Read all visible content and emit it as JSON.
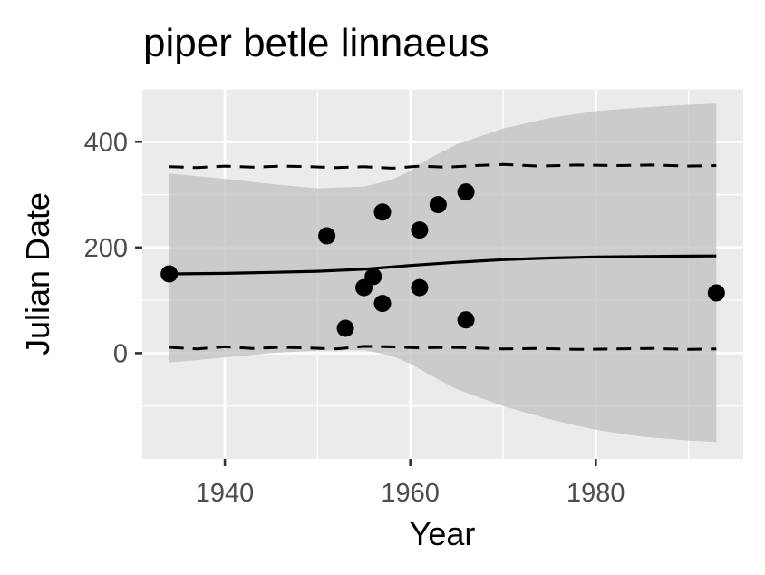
{
  "chart_data": {
    "type": "scatter",
    "title": "piper betle linnaeus",
    "xlabel": "Year",
    "ylabel": "Julian Date",
    "xlim": [
      1931.1,
      1995.9
    ],
    "ylim": [
      -200,
      500
    ],
    "x_ticks": [
      1940,
      1960,
      1980
    ],
    "y_ticks": [
      0,
      200,
      400
    ],
    "x_tick_labels": [
      "1940",
      "1960",
      "1980"
    ],
    "y_tick_labels": [
      "0",
      "200",
      "400"
    ],
    "grid": true,
    "legend": "none",
    "colors": {
      "panel": "#ebebeb",
      "grid": "#ffffff",
      "band": "#bebebe",
      "points": "#000000",
      "lines": "#000000",
      "tick_text": "#4d4d4d"
    },
    "points": [
      {
        "x": 1934,
        "y": 150
      },
      {
        "x": 1951,
        "y": 222
      },
      {
        "x": 1953,
        "y": 47
      },
      {
        "x": 1955,
        "y": 124
      },
      {
        "x": 1956,
        "y": 145
      },
      {
        "x": 1957,
        "y": 267
      },
      {
        "x": 1957,
        "y": 94
      },
      {
        "x": 1961,
        "y": 233
      },
      {
        "x": 1961,
        "y": 124
      },
      {
        "x": 1963,
        "y": 281
      },
      {
        "x": 1966,
        "y": 305
      },
      {
        "x": 1966,
        "y": 63
      },
      {
        "x": 1993,
        "y": 114
      }
    ],
    "fit_line": {
      "x": [
        1934,
        1940,
        1945,
        1950,
        1955,
        1960,
        1965,
        1970,
        1975,
        1980,
        1985,
        1993
      ],
      "y": [
        150,
        151,
        153,
        155,
        159,
        166,
        172,
        177,
        180,
        182,
        183,
        184
      ]
    },
    "upper_dashed": {
      "x": [
        1934,
        1937,
        1940,
        1943,
        1946,
        1949,
        1952,
        1955,
        1958,
        1961,
        1964,
        1967,
        1970,
        1974,
        1978,
        1982,
        1986,
        1990,
        1993
      ],
      "y": [
        353,
        351,
        354,
        352,
        354,
        353,
        351,
        353,
        350,
        354,
        352,
        355,
        357,
        354,
        356,
        355,
        356,
        354,
        355
      ]
    },
    "lower_dashed": {
      "x": [
        1934,
        1937,
        1940,
        1943,
        1946,
        1949,
        1952,
        1955,
        1958,
        1961,
        1964,
        1967,
        1970,
        1974,
        1978,
        1982,
        1986,
        1990,
        1993
      ],
      "y": [
        11,
        8,
        12,
        9,
        11,
        10,
        8,
        13,
        12,
        10,
        11,
        10,
        8,
        9,
        7,
        8,
        9,
        7,
        8
      ]
    },
    "band_upper": {
      "x": [
        1934,
        1940,
        1945,
        1950,
        1955,
        1958,
        1960,
        1962,
        1965,
        1970,
        1975,
        1980,
        1985,
        1990,
        1993
      ],
      "y": [
        340,
        330,
        320,
        312,
        315,
        328,
        345,
        368,
        395,
        425,
        445,
        458,
        465,
        470,
        472
      ]
    },
    "band_lower": {
      "x": [
        1934,
        1940,
        1945,
        1950,
        1955,
        1958,
        1960,
        1962,
        1965,
        1970,
        1975,
        1980,
        1985,
        1990,
        1993
      ],
      "y": [
        -18,
        -8,
        0,
        5,
        6,
        -5,
        -20,
        -40,
        -68,
        -100,
        -125,
        -145,
        -158,
        -165,
        -168
      ]
    }
  }
}
